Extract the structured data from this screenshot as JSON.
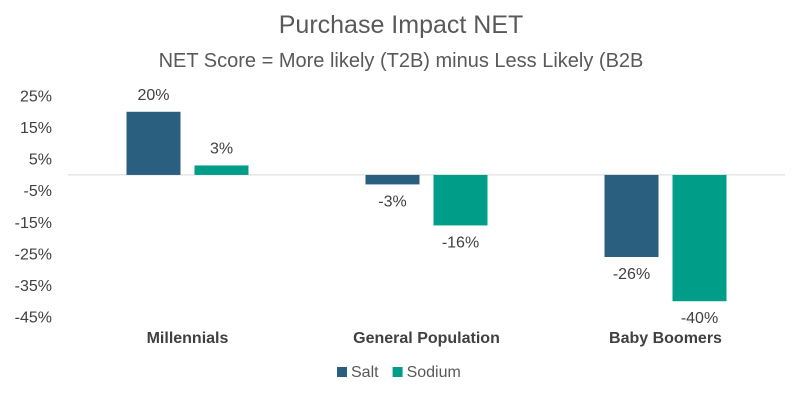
{
  "chart_data": {
    "type": "bar",
    "title": "Purchase Impact NET",
    "subtitle": "NET Score = More likely (T2B) minus Less Likely (B2B",
    "categories": [
      "Millennials",
      "General Population",
      "Baby Boomers"
    ],
    "series": [
      {
        "name": "Salt",
        "values": [
          20,
          -3,
          -26
        ],
        "color": "#2a5f7f"
      },
      {
        "name": "Sodium",
        "values": [
          3,
          -16,
          -40
        ],
        "color": "#009e88"
      }
    ],
    "yticks": [
      "25%",
      "15%",
      "5%",
      "-5%",
      "-15%",
      "-25%",
      "-35%",
      "-45%"
    ],
    "ytick_values": [
      25,
      15,
      5,
      -5,
      -15,
      -25,
      -35,
      -45
    ],
    "ylim": [
      -45,
      25
    ],
    "legend_position": "bottom",
    "value_suffix": "%"
  }
}
